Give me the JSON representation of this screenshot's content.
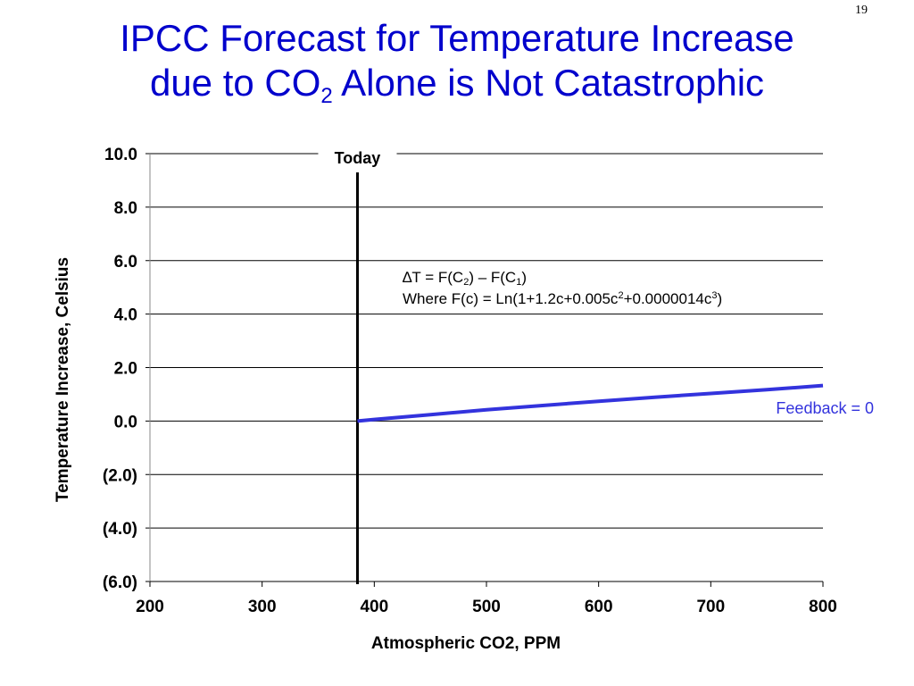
{
  "slide_number": "19",
  "title": {
    "line1": "IPCC Forecast for Temperature Increase",
    "line2_pre": "due to CO",
    "line2_sub": "2",
    "line2_post": " Alone is Not Catastrophic"
  },
  "chart_data": {
    "type": "line",
    "xlabel": "Atmospheric CO2, PPM",
    "ylabel": "Temperature Increase, Celsius",
    "xlim": [
      200,
      800
    ],
    "ylim": [
      -6,
      10
    ],
    "x_ticks": [
      200,
      300,
      400,
      500,
      600,
      700,
      800
    ],
    "x_tick_labels": [
      "200",
      "300",
      "400",
      "500",
      "600",
      "700",
      "800"
    ],
    "y_ticks": [
      10,
      8,
      6,
      4,
      2,
      0,
      -2,
      -4,
      -6
    ],
    "y_tick_labels": [
      "10.0",
      "8.0",
      "6.0",
      "4.0",
      "2.0",
      "0.0",
      "(2.0)",
      "(4.0)",
      "(6.0)"
    ],
    "grid": "horizontal",
    "series": [
      {
        "name": "Feedback = 0",
        "color": "#3333dd",
        "x": [
          385,
          400,
          450,
          500,
          550,
          600,
          650,
          700,
          750,
          800
        ],
        "y": [
          0.0,
          0.06,
          0.24,
          0.42,
          0.58,
          0.74,
          0.89,
          1.03,
          1.17,
          1.33
        ]
      }
    ],
    "reference_line": {
      "label": "Today",
      "x": 385
    },
    "annotation": {
      "line1_parts": [
        "∆T = F(C",
        "2",
        ") – F(C",
        "1",
        ")"
      ],
      "line2_parts": [
        "Where F(c) = Ln(1+1.2c+0.005c",
        "2",
        "+0.0000014c",
        "3",
        ")"
      ]
    }
  }
}
